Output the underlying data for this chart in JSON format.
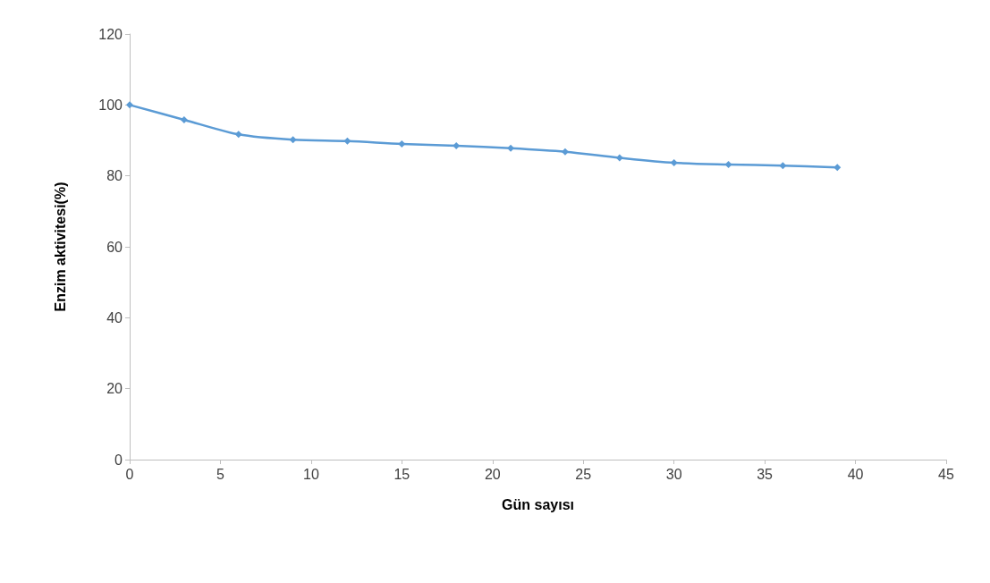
{
  "chart_data": {
    "type": "line",
    "xlabel": "Gün sayısı",
    "ylabel": "Enzim aktivitesi(%)",
    "x": [
      0,
      3,
      6,
      9,
      12,
      15,
      18,
      21,
      24,
      27,
      30,
      33,
      36,
      39
    ],
    "series": [
      {
        "color": "#5b9bd5",
        "values": [
          100,
          95.8,
          91.7,
          90.2,
          89.8,
          89,
          88.5,
          87.8,
          86.8,
          85.1,
          83.7,
          83.2,
          82.9,
          82.4
        ]
      }
    ],
    "xlim": [
      0,
      45
    ],
    "xticks": [
      0,
      5,
      10,
      15,
      20,
      25,
      30,
      35,
      40,
      45
    ],
    "ylim": [
      0,
      120
    ],
    "yticks": [
      0,
      20,
      40,
      60,
      80,
      100,
      120
    ],
    "grid": false,
    "marker": "diamond",
    "line_style": "solid"
  }
}
